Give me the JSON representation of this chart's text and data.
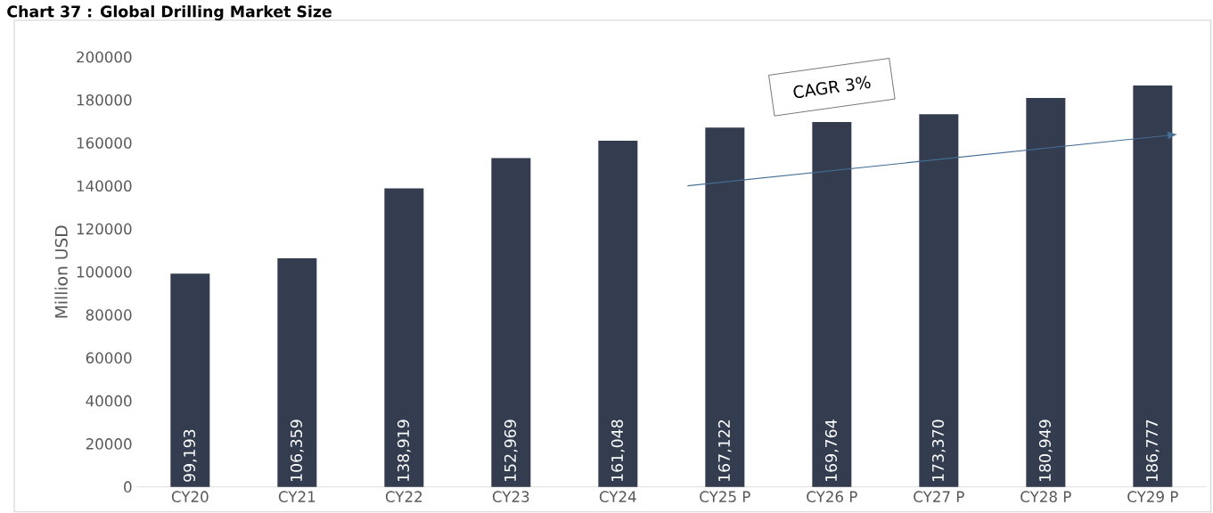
{
  "chart_data": {
    "type": "bar",
    "title": "Chart 37 : Global Drilling Market Size",
    "ylabel": "Million USD",
    "categories": [
      "CY20",
      "CY21",
      "CY22",
      "CY23",
      "CY24",
      "CY25 P",
      "CY26 P",
      "CY27 P",
      "CY28 P",
      "CY29 P"
    ],
    "values": [
      99193,
      106359,
      138919,
      152969,
      161048,
      167122,
      169764,
      173370,
      180949,
      186777
    ],
    "value_labels": [
      "99,193",
      "106,359",
      "138,919",
      "152,969",
      "161,048",
      "167,122",
      "169,764",
      "173,370",
      "180,949",
      "186,777"
    ],
    "color": "#333d4f",
    "ylim": [
      0,
      200000
    ],
    "yticks": [
      0,
      20000,
      40000,
      60000,
      80000,
      100000,
      120000,
      140000,
      160000,
      180000,
      200000
    ],
    "grid": false,
    "annotations": [
      "CAGR 3%"
    ]
  }
}
